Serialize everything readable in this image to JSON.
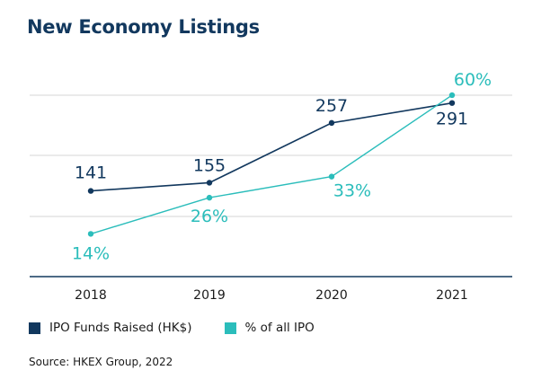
{
  "chart_data": {
    "type": "line",
    "title": "New Economy Listings",
    "categories": [
      "2018",
      "2019",
      "2020",
      "2021"
    ],
    "series": [
      {
        "name": "IPO Funds Raised (HK$)",
        "color": "#12385e",
        "values": [
          141,
          155,
          257,
          291
        ],
        "labels": [
          "141",
          "155",
          "257",
          "291"
        ]
      },
      {
        "name": "% of all IPO",
        "color": "#2bbdbb",
        "values": [
          14,
          26,
          33,
          60
        ],
        "labels": [
          "14%",
          "26%",
          "33%",
          "60%"
        ]
      }
    ],
    "grid": true,
    "legend": "bottom-left",
    "source": "Source: HKEX Group, 2022"
  }
}
